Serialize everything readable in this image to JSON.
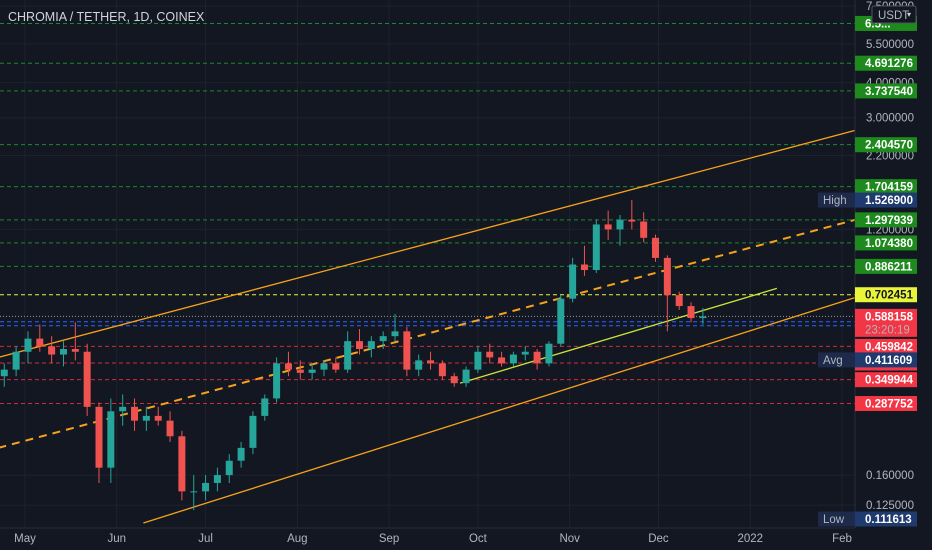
{
  "chart_data": {
    "type": "candlestick",
    "title": "CHROMIA / TETHER, 1D, COINEX",
    "currency": "USDT",
    "scale": "log",
    "ylim": [
      0.108,
      7.5
    ],
    "y_ticks": [
      7.5,
      5.5,
      4.0,
      3.0,
      2.2,
      1.2,
      0.16,
      0.125
    ],
    "y_tick_labels": [
      "7.500000",
      "5.500000",
      "4.000000",
      "3.000000",
      "2.200000",
      "1.200000",
      "0.160000",
      "0.125000"
    ],
    "x_ticks": [
      {
        "label": "May",
        "date": "2021-05-01"
      },
      {
        "label": "Jun",
        "date": "2021-06-01"
      },
      {
        "label": "Jul",
        "date": "2021-07-01"
      },
      {
        "label": "Aug",
        "date": "2021-08-01"
      },
      {
        "label": "Sep",
        "date": "2021-09-01"
      },
      {
        "label": "Oct",
        "date": "2021-10-01"
      },
      {
        "label": "Nov",
        "date": "2021-11-01"
      },
      {
        "label": "Dec",
        "date": "2021-12-01"
      },
      {
        "label": "2022",
        "date": "2022-01-01"
      },
      {
        "label": "Feb",
        "date": "2022-02-01"
      }
    ],
    "horizontal_levels": [
      {
        "value": 6.5,
        "label": "6.5...",
        "color": "#1e8a1e",
        "line": "green"
      },
      {
        "value": 4.691276,
        "label": "4.691276",
        "color": "#1e8a1e",
        "line": "green"
      },
      {
        "value": 3.73754,
        "label": "3.737540",
        "color": "#1e8a1e",
        "line": "green"
      },
      {
        "value": 2.40457,
        "label": "2.404570",
        "color": "#1e8a1e",
        "line": "green"
      },
      {
        "value": 1.704159,
        "label": "1.704159",
        "color": "#1e8a1e",
        "line": "green"
      },
      {
        "value": 1.297939,
        "label": "1.297939",
        "color": "#1e8a1e",
        "line": "green"
      },
      {
        "value": 1.07438,
        "label": "1.074380",
        "color": "#1e8a1e",
        "line": "green"
      },
      {
        "value": 0.886211,
        "label": "0.886211",
        "color": "#1e8a1e",
        "line": "green"
      },
      {
        "value": 0.702451,
        "label": "0.702451",
        "color": "#e8f53a",
        "line": "yellow"
      },
      {
        "value": 0.562477,
        "label": "0.562477",
        "color": "#2962ff",
        "line": "blue"
      },
      {
        "value": 0.544566,
        "label": "0.544566",
        "color": "#2962ff",
        "line": "blue"
      },
      {
        "value": 0.459842,
        "label": "0.459842",
        "color": "#f23645",
        "line": "red"
      },
      {
        "value": 0.401148,
        "label": "0.401148",
        "color": "#f23645",
        "line": "red"
      },
      {
        "value": 0.349944,
        "label": "0.349944",
        "color": "#f23645",
        "line": "red"
      },
      {
        "value": 0.287752,
        "label": "0.287752",
        "color": "#f23645",
        "line": "red"
      }
    ],
    "price_markers": [
      {
        "name": "High",
        "value": 1.5269,
        "label": "1.526900"
      },
      {
        "name": "Avg",
        "value": 0.411609,
        "label": "0.411609"
      },
      {
        "name": "Low",
        "value": 0.111613,
        "label": "0.111613"
      }
    ],
    "last_price": {
      "value": 0.588158,
      "label": "0.588158",
      "countdown": "23:20:19",
      "color": "#f23645"
    },
    "candles": [
      {
        "date": "2021-04-24",
        "o": 0.36,
        "h": 0.4,
        "l": 0.33,
        "c": 0.38
      },
      {
        "date": "2021-04-28",
        "o": 0.38,
        "h": 0.46,
        "l": 0.36,
        "c": 0.44
      },
      {
        "date": "2021-05-02",
        "o": 0.44,
        "h": 0.52,
        "l": 0.4,
        "c": 0.49
      },
      {
        "date": "2021-05-06",
        "o": 0.49,
        "h": 0.55,
        "l": 0.44,
        "c": 0.46
      },
      {
        "date": "2021-05-10",
        "o": 0.46,
        "h": 0.5,
        "l": 0.4,
        "c": 0.43
      },
      {
        "date": "2021-05-14",
        "o": 0.43,
        "h": 0.48,
        "l": 0.39,
        "c": 0.45
      },
      {
        "date": "2021-05-18",
        "o": 0.45,
        "h": 0.56,
        "l": 0.41,
        "c": 0.44
      },
      {
        "date": "2021-05-22",
        "o": 0.44,
        "h": 0.47,
        "l": 0.26,
        "c": 0.28
      },
      {
        "date": "2021-05-26",
        "o": 0.28,
        "h": 0.29,
        "l": 0.15,
        "c": 0.17
      },
      {
        "date": "2021-05-30",
        "o": 0.17,
        "h": 0.3,
        "l": 0.15,
        "c": 0.27
      },
      {
        "date": "2021-06-03",
        "o": 0.27,
        "h": 0.31,
        "l": 0.24,
        "c": 0.28
      },
      {
        "date": "2021-06-07",
        "o": 0.28,
        "h": 0.3,
        "l": 0.23,
        "c": 0.25
      },
      {
        "date": "2021-06-11",
        "o": 0.25,
        "h": 0.28,
        "l": 0.23,
        "c": 0.26
      },
      {
        "date": "2021-06-15",
        "o": 0.26,
        "h": 0.28,
        "l": 0.24,
        "c": 0.25
      },
      {
        "date": "2021-06-19",
        "o": 0.25,
        "h": 0.27,
        "l": 0.21,
        "c": 0.22
      },
      {
        "date": "2021-06-23",
        "o": 0.22,
        "h": 0.23,
        "l": 0.13,
        "c": 0.14
      },
      {
        "date": "2021-06-27",
        "o": 0.14,
        "h": 0.16,
        "l": 0.12,
        "c": 0.14
      },
      {
        "date": "2021-07-01",
        "o": 0.14,
        "h": 0.16,
        "l": 0.13,
        "c": 0.15
      },
      {
        "date": "2021-07-05",
        "o": 0.15,
        "h": 0.17,
        "l": 0.14,
        "c": 0.16
      },
      {
        "date": "2021-07-09",
        "o": 0.16,
        "h": 0.19,
        "l": 0.15,
        "c": 0.18
      },
      {
        "date": "2021-07-13",
        "o": 0.18,
        "h": 0.21,
        "l": 0.17,
        "c": 0.2
      },
      {
        "date": "2021-07-17",
        "o": 0.2,
        "h": 0.27,
        "l": 0.19,
        "c": 0.26
      },
      {
        "date": "2021-07-21",
        "o": 0.26,
        "h": 0.31,
        "l": 0.25,
        "c": 0.3
      },
      {
        "date": "2021-07-25",
        "o": 0.3,
        "h": 0.42,
        "l": 0.29,
        "c": 0.4
      },
      {
        "date": "2021-07-29",
        "o": 0.4,
        "h": 0.44,
        "l": 0.36,
        "c": 0.38
      },
      {
        "date": "2021-08-02",
        "o": 0.38,
        "h": 0.41,
        "l": 0.35,
        "c": 0.37
      },
      {
        "date": "2021-08-06",
        "o": 0.37,
        "h": 0.4,
        "l": 0.35,
        "c": 0.38
      },
      {
        "date": "2021-08-10",
        "o": 0.38,
        "h": 0.41,
        "l": 0.36,
        "c": 0.4
      },
      {
        "date": "2021-08-14",
        "o": 0.4,
        "h": 0.42,
        "l": 0.37,
        "c": 0.38
      },
      {
        "date": "2021-08-18",
        "o": 0.38,
        "h": 0.52,
        "l": 0.37,
        "c": 0.48
      },
      {
        "date": "2021-08-22",
        "o": 0.48,
        "h": 0.53,
        "l": 0.43,
        "c": 0.45
      },
      {
        "date": "2021-08-26",
        "o": 0.45,
        "h": 0.5,
        "l": 0.42,
        "c": 0.48
      },
      {
        "date": "2021-08-30",
        "o": 0.48,
        "h": 0.52,
        "l": 0.45,
        "c": 0.5
      },
      {
        "date": "2021-09-03",
        "o": 0.5,
        "h": 0.6,
        "l": 0.48,
        "c": 0.52
      },
      {
        "date": "2021-09-07",
        "o": 0.52,
        "h": 0.54,
        "l": 0.36,
        "c": 0.38
      },
      {
        "date": "2021-09-11",
        "o": 0.38,
        "h": 0.43,
        "l": 0.36,
        "c": 0.41
      },
      {
        "date": "2021-09-15",
        "o": 0.41,
        "h": 0.44,
        "l": 0.38,
        "c": 0.4
      },
      {
        "date": "2021-09-19",
        "o": 0.4,
        "h": 0.41,
        "l": 0.35,
        "c": 0.36
      },
      {
        "date": "2021-09-23",
        "o": 0.36,
        "h": 0.37,
        "l": 0.33,
        "c": 0.34
      },
      {
        "date": "2021-09-27",
        "o": 0.34,
        "h": 0.39,
        "l": 0.33,
        "c": 0.38
      },
      {
        "date": "2021-10-01",
        "o": 0.38,
        "h": 0.46,
        "l": 0.37,
        "c": 0.44
      },
      {
        "date": "2021-10-05",
        "o": 0.44,
        "h": 0.47,
        "l": 0.4,
        "c": 0.42
      },
      {
        "date": "2021-10-09",
        "o": 0.42,
        "h": 0.44,
        "l": 0.39,
        "c": 0.4
      },
      {
        "date": "2021-10-13",
        "o": 0.4,
        "h": 0.44,
        "l": 0.39,
        "c": 0.43
      },
      {
        "date": "2021-10-17",
        "o": 0.43,
        "h": 0.46,
        "l": 0.41,
        "c": 0.44
      },
      {
        "date": "2021-10-21",
        "o": 0.44,
        "h": 0.45,
        "l": 0.38,
        "c": 0.4
      },
      {
        "date": "2021-10-25",
        "o": 0.4,
        "h": 0.48,
        "l": 0.39,
        "c": 0.47
      },
      {
        "date": "2021-10-29",
        "o": 0.47,
        "h": 0.7,
        "l": 0.46,
        "c": 0.68
      },
      {
        "date": "2021-11-02",
        "o": 0.68,
        "h": 0.95,
        "l": 0.66,
        "c": 0.9
      },
      {
        "date": "2021-11-06",
        "o": 0.9,
        "h": 1.05,
        "l": 0.82,
        "c": 0.86
      },
      {
        "date": "2021-11-10",
        "o": 0.86,
        "h": 1.3,
        "l": 0.84,
        "c": 1.25
      },
      {
        "date": "2021-11-14",
        "o": 1.25,
        "h": 1.4,
        "l": 1.1,
        "c": 1.2
      },
      {
        "date": "2021-11-18",
        "o": 1.2,
        "h": 1.35,
        "l": 1.05,
        "c": 1.3
      },
      {
        "date": "2021-11-22",
        "o": 1.3,
        "h": 1.5269,
        "l": 1.2,
        "c": 1.28
      },
      {
        "date": "2021-11-26",
        "o": 1.28,
        "h": 1.38,
        "l": 1.08,
        "c": 1.12
      },
      {
        "date": "2021-11-30",
        "o": 1.12,
        "h": 1.15,
        "l": 0.92,
        "c": 0.95
      },
      {
        "date": "2021-12-04",
        "o": 0.95,
        "h": 0.97,
        "l": 0.52,
        "c": 0.7
      },
      {
        "date": "2021-12-08",
        "o": 0.7,
        "h": 0.72,
        "l": 0.62,
        "c": 0.64
      },
      {
        "date": "2021-12-12",
        "o": 0.64,
        "h": 0.66,
        "l": 0.56,
        "c": 0.58
      },
      {
        "date": "2021-12-16",
        "o": 0.58,
        "h": 0.63,
        "l": 0.55,
        "c": 0.588158
      }
    ],
    "drawings": [
      {
        "name": "channel-upper-line",
        "color": "#f7a21b",
        "style": "solid",
        "p1": {
          "date": "2021-04-22",
          "value": 0.42
        },
        "p2": {
          "date": "2022-02-08",
          "value": 2.75
        }
      },
      {
        "name": "channel-middle-line",
        "color": "#f7a21b",
        "style": "dashed",
        "p1": {
          "date": "2021-04-22",
          "value": 0.2
        },
        "p2": {
          "date": "2022-02-08",
          "value": 1.32
        }
      },
      {
        "name": "channel-lower-line",
        "color": "#f7a21b",
        "style": "solid",
        "p1": {
          "date": "2021-06-10",
          "value": 0.108
        },
        "p2": {
          "date": "2022-02-08",
          "value": 0.7
        }
      },
      {
        "name": "support-trend-line",
        "color": "#c8e63a",
        "style": "solid",
        "p1": {
          "date": "2021-09-25",
          "value": 0.34
        },
        "p2": {
          "date": "2022-01-10",
          "value": 0.74
        }
      }
    ]
  }
}
